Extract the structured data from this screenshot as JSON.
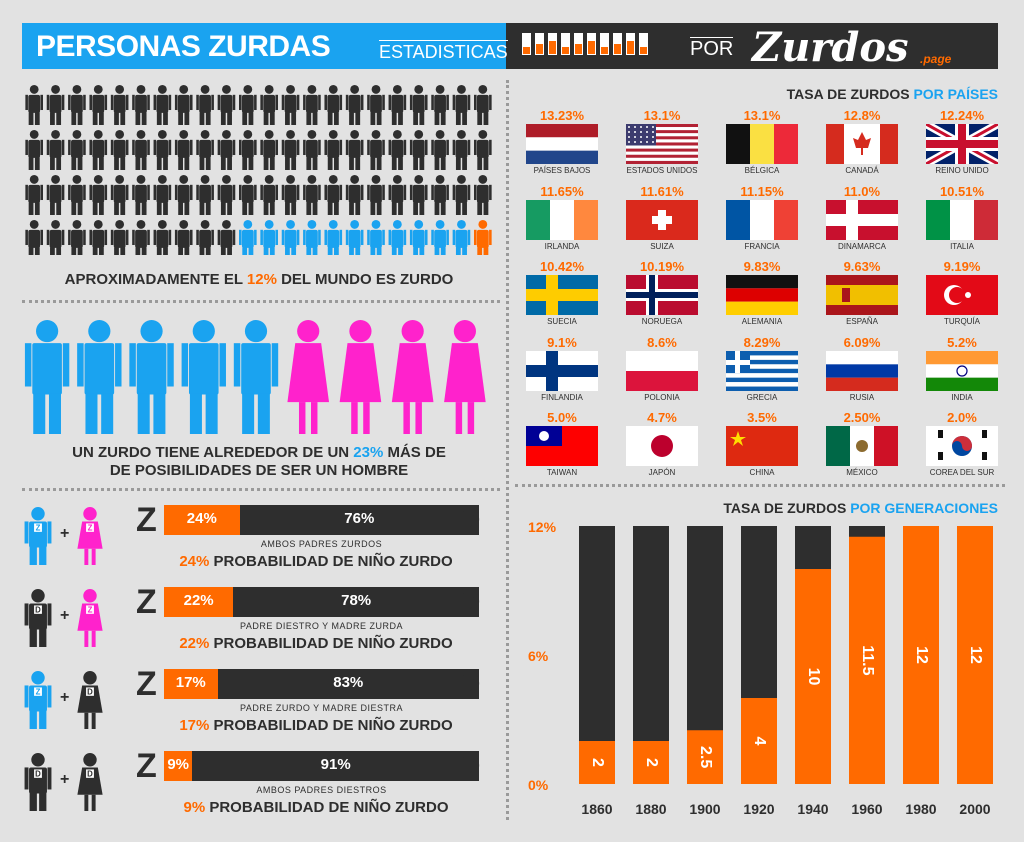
{
  "header": {
    "title": "PERSONAS ZURDAS",
    "subtitle": "ESTADISTICAS",
    "por": "POR",
    "brand": "Zurdos",
    "brand_suffix": ".page"
  },
  "world": {
    "caption_pre": "APROXIMADAMENTE EL ",
    "caption_pct": "12%",
    "caption_post": " DEL MUNDO ES ZURDO",
    "rows": 4,
    "per_row": 22,
    "blue_start_last_row": 10,
    "orange_last_row": 1
  },
  "gender": {
    "caption_line1_pre": "UN ZURDO TIENE ALREDEDOR DE UN ",
    "caption_pct": "23%",
    "caption_line1_post": " MÁS DE",
    "caption_line2": "DE POSIBILIDADES DE SER UN HOMBRE",
    "male_count": 5,
    "female_count": 4
  },
  "parents": {
    "left_letter": "Z",
    "right_letter": "D",
    "suffix": " PROBABILIDAD DE NIÑO ZURDO",
    "rows": [
      {
        "father": "Z",
        "mother": "Z",
        "left": 24,
        "left_label": "24%",
        "right_label": "76%",
        "desc": "AMBOS PADRES ZURDOS",
        "cap_pct": "24%"
      },
      {
        "father": "D",
        "mother": "Z",
        "left": 22,
        "left_label": "22%",
        "right_label": "78%",
        "desc": "PADRE DIESTRO Y MADRE ZURDA",
        "cap_pct": "22%"
      },
      {
        "father": "Z",
        "mother": "D",
        "left": 17,
        "left_label": "17%",
        "right_label": "83%",
        "desc": "PADRE ZURDO Y MADRE DIESTRA",
        "cap_pct": "17%"
      },
      {
        "father": "D",
        "mother": "D",
        "left": 9,
        "left_label": "9%",
        "right_label": "91%",
        "desc": "AMBOS PADRES DIESTROS",
        "cap_pct": "9%"
      }
    ]
  },
  "countries": {
    "title_pre": "TASA DE ZURDOS ",
    "title_hl": "POR PAÍSES",
    "items": [
      {
        "rate": "13.23%",
        "name": "PAÍSES BAJOS",
        "flag": "nl"
      },
      {
        "rate": "13.1%",
        "name": "ESTADOS UNIDOS",
        "flag": "us"
      },
      {
        "rate": "13.1%",
        "name": "BÉLGICA",
        "flag": "be"
      },
      {
        "rate": "12.8%",
        "name": "CANADÁ",
        "flag": "ca"
      },
      {
        "rate": "12.24%",
        "name": "REINO UNIDO",
        "flag": "gb"
      },
      {
        "rate": "11.65%",
        "name": "IRLANDA",
        "flag": "ie"
      },
      {
        "rate": "11.61%",
        "name": "SUIZA",
        "flag": "ch"
      },
      {
        "rate": "11.15%",
        "name": "FRANCIA",
        "flag": "fr"
      },
      {
        "rate": "11.0%",
        "name": "DINAMARCA",
        "flag": "dk"
      },
      {
        "rate": "10.51%",
        "name": "ITALIA",
        "flag": "it"
      },
      {
        "rate": "10.42%",
        "name": "SUECIA",
        "flag": "se"
      },
      {
        "rate": "10.19%",
        "name": "NORUEGA",
        "flag": "no"
      },
      {
        "rate": "9.83%",
        "name": "ALEMANIA",
        "flag": "de"
      },
      {
        "rate": "9.63%",
        "name": "ESPAÑA",
        "flag": "es"
      },
      {
        "rate": "9.19%",
        "name": "TURQUÍA",
        "flag": "tr"
      },
      {
        "rate": "9.1%",
        "name": "FINLANDIA",
        "flag": "fi"
      },
      {
        "rate": "8.6%",
        "name": "POLONIA",
        "flag": "pl"
      },
      {
        "rate": "8.29%",
        "name": "GRECIA",
        "flag": "gr"
      },
      {
        "rate": "6.09%",
        "name": "RUSIA",
        "flag": "ru"
      },
      {
        "rate": "5.2%",
        "name": "INDIA",
        "flag": "in"
      },
      {
        "rate": "5.0%",
        "name": "TAIWAN",
        "flag": "tw"
      },
      {
        "rate": "4.7%",
        "name": "JAPÓN",
        "flag": "jp"
      },
      {
        "rate": "3.5%",
        "name": "CHINA",
        "flag": "cn"
      },
      {
        "rate": "2.50%",
        "name": "MÉXICO",
        "flag": "mx"
      },
      {
        "rate": "2.0%",
        "name": "COREA DEL SUR",
        "flag": "kr"
      }
    ]
  },
  "chart_data": {
    "type": "bar",
    "title_pre": "TASA DE ZURDOS ",
    "title_hl": "POR GENERACIONES",
    "categories": [
      "1860",
      "1880",
      "1900",
      "1920",
      "1940",
      "1960",
      "1980",
      "2000"
    ],
    "values": [
      2,
      2,
      2.5,
      4,
      10,
      11.5,
      12,
      12
    ],
    "value_labels": [
      "2",
      "2",
      "2.5",
      "4",
      "10",
      "11.5",
      "12",
      "12"
    ],
    "ylim": [
      0,
      12
    ],
    "yticks": [
      "0%",
      "6%",
      "12%"
    ],
    "ytick_values": [
      0,
      6,
      12
    ],
    "colors": {
      "value": "#ff6a00",
      "remainder": "#2e2e2e"
    }
  },
  "colors": {
    "blue": "#1aa3f0",
    "orange": "#ff6a00",
    "dark": "#2e2e2e",
    "pink": "#ff22cc",
    "bg": "#e2e2e2"
  }
}
